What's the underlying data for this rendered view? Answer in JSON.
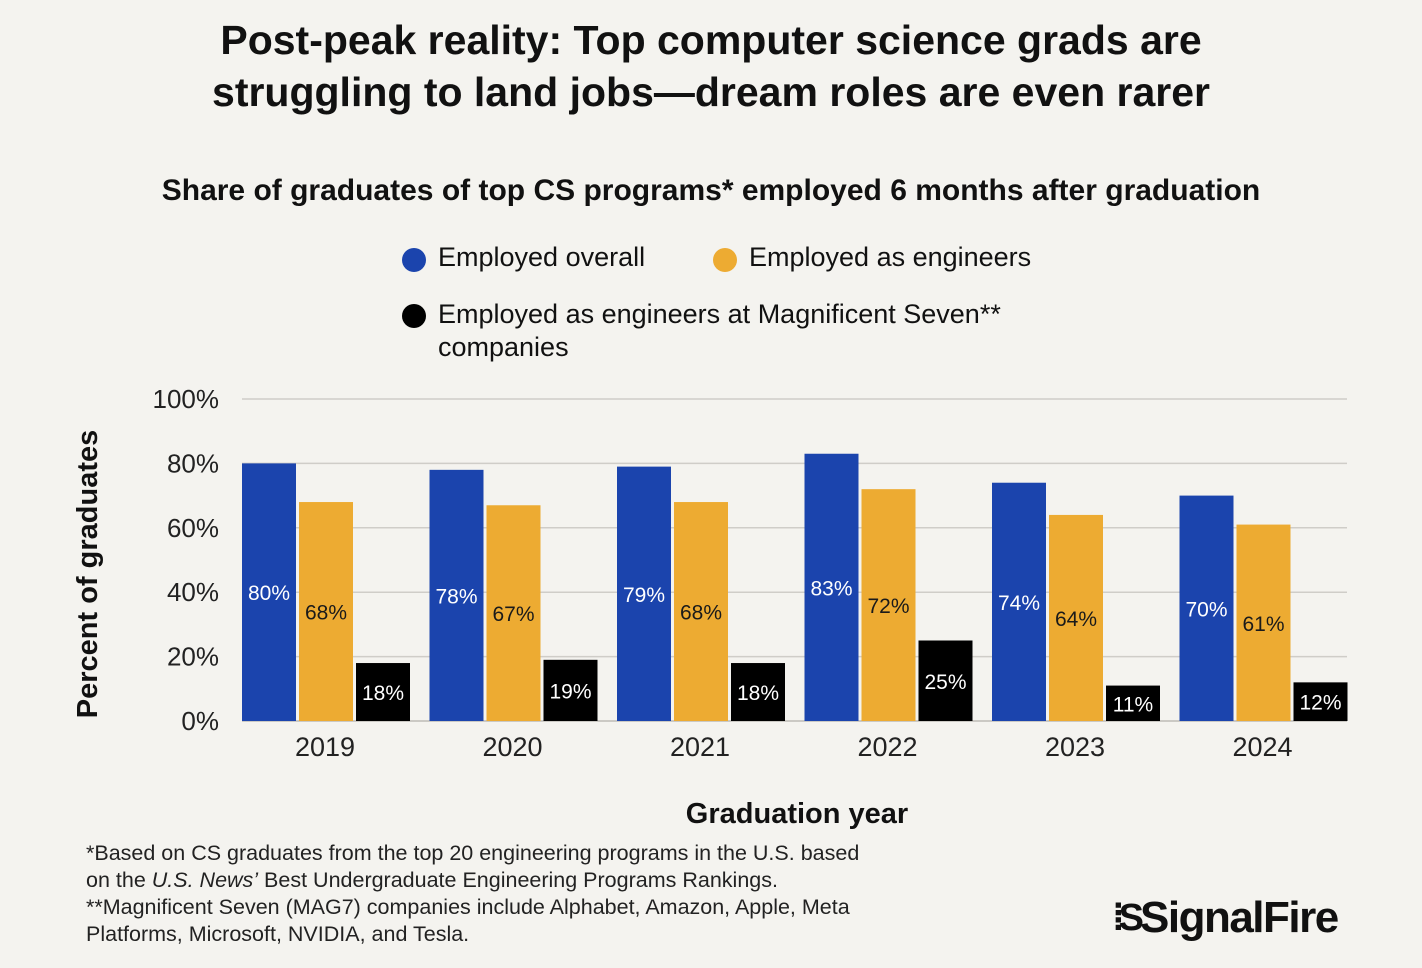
{
  "chart_data": {
    "type": "bar",
    "title": "Post-peak reality: Top computer science grads are struggling to land jobs—dream roles are even rarer",
    "title_lines": [
      "Post-peak reality: Top computer science grads are",
      "struggling to land jobs—dream roles are even rarer"
    ],
    "subtitle": "Share of graduates of top CS programs* employed 6 months after graduation",
    "xlabel": "Graduation year",
    "ylabel": "Percent of graduates",
    "ylim": [
      0,
      100
    ],
    "yticks": [
      "0%",
      "20%",
      "40%",
      "60%",
      "80%",
      "100%"
    ],
    "grid": true,
    "legend_placement": "top",
    "categories": [
      "2019",
      "2020",
      "2021",
      "2022",
      "2023",
      "2024"
    ],
    "series": [
      {
        "name": "Employed overall",
        "color": "#1b44ad",
        "label_color": "#ffffff",
        "values": [
          80,
          78,
          79,
          83,
          74,
          70
        ]
      },
      {
        "name": "Employed as engineers",
        "color": "#edab32",
        "label_color": "#1a1a1a",
        "values": [
          68,
          67,
          68,
          72,
          64,
          61
        ]
      },
      {
        "name": "Employed as engineers at Magnificent Seven** companies",
        "name_lines": [
          "Employed as engineers at Magnificent Seven**",
          "companies"
        ],
        "color": "#000000",
        "label_color": "#ffffff",
        "values": [
          18,
          19,
          18,
          25,
          11,
          12
        ]
      }
    ]
  },
  "footnotes": {
    "line1": "*Based on CS graduates from the top 20 engineering programs in the U.S. based",
    "line2_pre": "on the ",
    "line2_italic": "U.S. News’",
    "line2_post": " Best Undergraduate Engineering Programs Rankings.",
    "line3": "**Magnificent Seven (MAG7) companies include Alphabet, Amazon, Apple, Meta",
    "line4": "Platforms, Microsoft, NVIDIA, and Tesla."
  },
  "logo": {
    "text": "SignalFire"
  }
}
